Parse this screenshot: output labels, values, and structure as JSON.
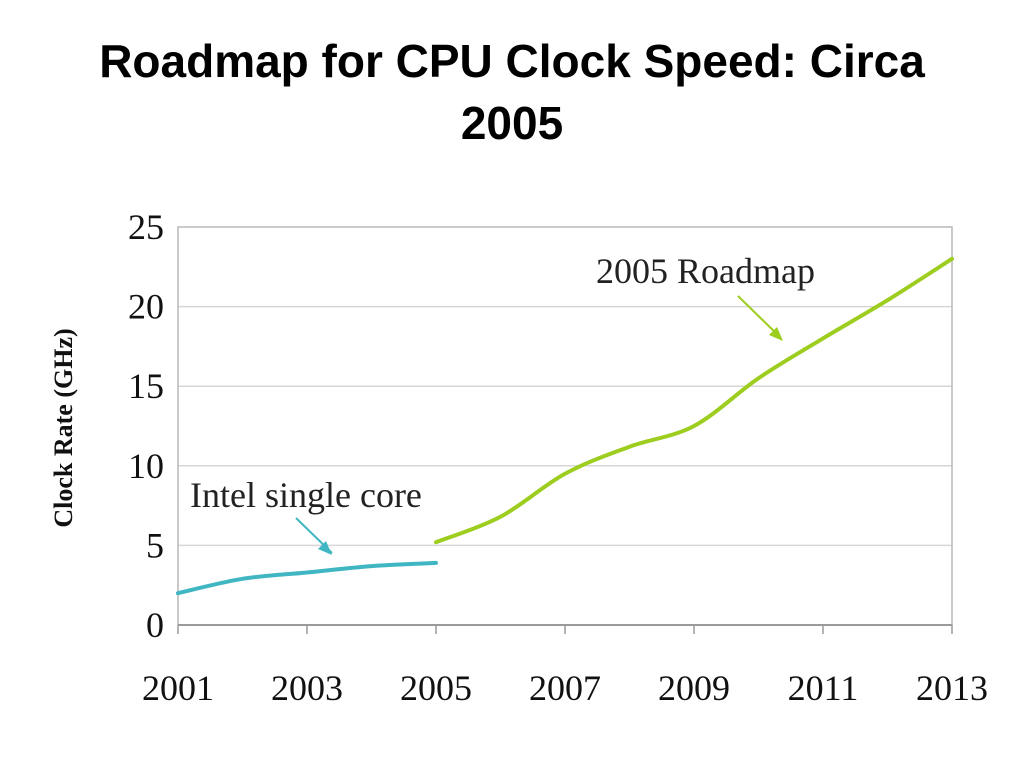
{
  "slide": {
    "title_line1": "Roadmap for CPU Clock Speed: Circa",
    "title_line2": "2005"
  },
  "chart_data": {
    "type": "line",
    "xlabel": "",
    "ylabel": "Clock Rate (GHz)",
    "xlim": [
      2001,
      2013
    ],
    "ylim": [
      0,
      25
    ],
    "x_ticks": [
      2001,
      2003,
      2005,
      2007,
      2009,
      2011,
      2013
    ],
    "y_ticks": [
      0,
      5,
      10,
      15,
      20,
      25
    ],
    "grid": "horizontal",
    "series": [
      {
        "name": "Intel single core",
        "color": "#3fb6c2",
        "x": [
          2001,
          2002,
          2003,
          2004,
          2005
        ],
        "y": [
          2.0,
          2.9,
          3.3,
          3.7,
          3.9
        ]
      },
      {
        "name": "2005 Roadmap",
        "color": "#9ccd1f",
        "x": [
          2005,
          2006,
          2007,
          2008,
          2009,
          2010,
          2011,
          2012,
          2013
        ],
        "y": [
          5.2,
          6.8,
          9.5,
          11.2,
          12.5,
          15.5,
          18.0,
          20.4,
          23.0
        ]
      }
    ],
    "annotations": [
      {
        "text": "Intel single core",
        "series": 0
      },
      {
        "text": "2005 Roadmap",
        "series": 1
      }
    ]
  }
}
